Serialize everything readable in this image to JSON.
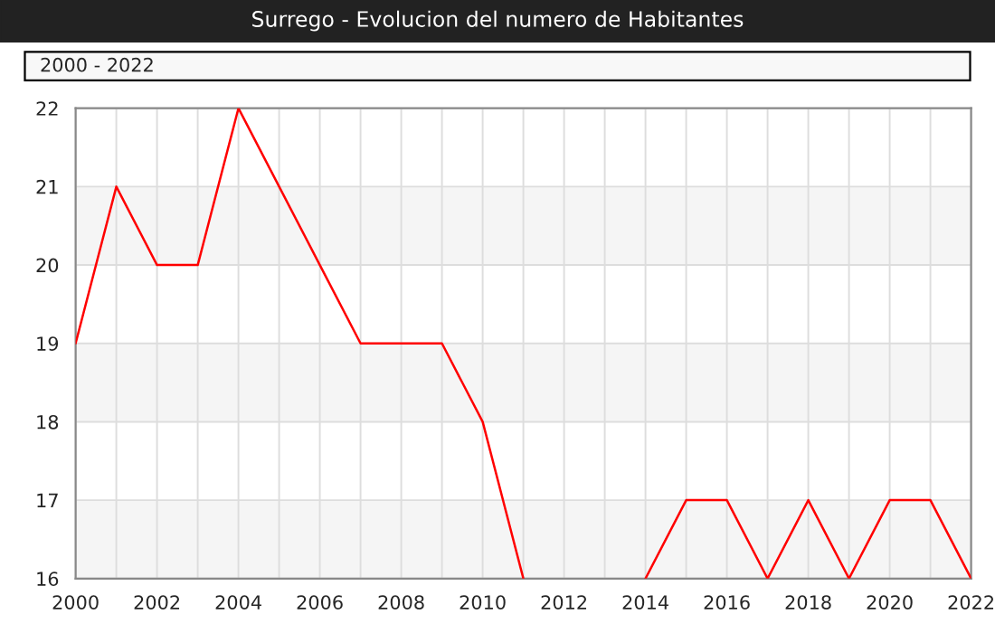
{
  "chart_data": {
    "type": "line",
    "title": "Surrego - Evolucion del numero de Habitantes",
    "annotations": [
      "2000 - 2022"
    ],
    "x": [
      2000,
      2001,
      2002,
      2003,
      2004,
      2005,
      2006,
      2007,
      2008,
      2009,
      2010,
      2011,
      2012,
      2013,
      2014,
      2015,
      2016,
      2017,
      2018,
      2019,
      2020,
      2021,
      2022
    ],
    "series": [
      {
        "color": "#ff0000",
        "values": [
          19,
          21,
          20,
          20,
          22,
          21,
          20,
          19,
          19,
          19,
          18,
          16,
          null,
          null,
          16,
          17,
          17,
          16,
          17,
          16,
          17,
          17,
          16
        ]
      }
    ],
    "xlim": [
      2000,
      2022
    ],
    "xticks": [
      2000,
      {
        "value": 2001,
        "label": null
      },
      2002,
      {
        "value": 2003,
        "label": null
      },
      2004,
      {
        "value": 2005,
        "label": null
      },
      2006,
      {
        "value": 2007,
        "label": null
      },
      2008,
      {
        "value": 2009,
        "label": null
      },
      2010,
      {
        "value": 2011,
        "label": null
      },
      2012,
      {
        "value": 2013,
        "label": null
      },
      2014,
      {
        "value": 2015,
        "label": null
      },
      2016,
      {
        "value": 2017,
        "label": null
      },
      2018,
      {
        "value": 2019,
        "label": null
      },
      2020,
      {
        "value": 2021,
        "label": null
      },
      2022
    ],
    "ylim": [
      16,
      22
    ],
    "yticks": [
      16,
      17,
      18,
      19,
      20,
      21,
      22
    ],
    "bands": [
      {
        "axis": "y",
        "from": 16,
        "to": 17,
        "color": "#f5f5f5"
      },
      {
        "axis": "y",
        "from": 18,
        "to": 19,
        "color": "#f5f5f5"
      },
      {
        "axis": "y",
        "from": 20,
        "to": 21,
        "color": "#f5f5f5"
      }
    ],
    "grid": true,
    "legend": false,
    "marker": "none",
    "line_style": "solid"
  }
}
